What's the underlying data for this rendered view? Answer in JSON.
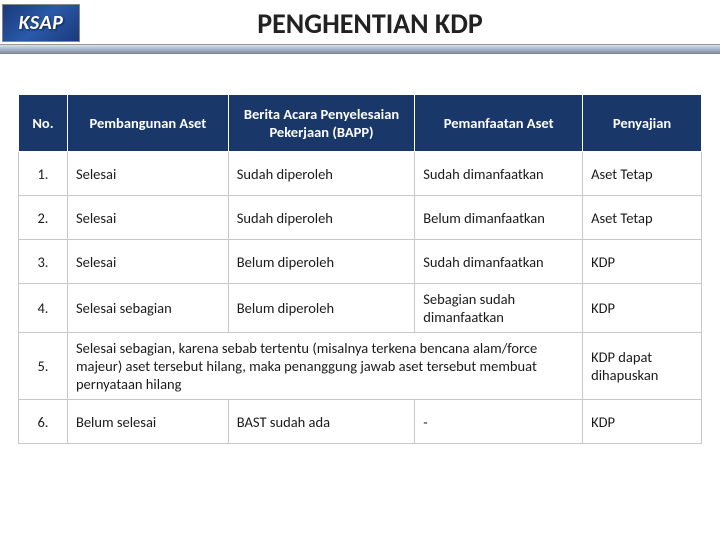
{
  "header": {
    "logo_text": "KSAP",
    "title": "PENGHENTIAN KDP"
  },
  "table": {
    "columns": [
      {
        "label": "No."
      },
      {
        "label": "Pembangunan Aset"
      },
      {
        "label": "Berita Acara Penyelesaian Pekerjaan (BAPP)"
      },
      {
        "label": "Pemanfaatan Aset"
      },
      {
        "label": "Penyajian"
      }
    ],
    "rows": [
      {
        "no": "1.",
        "pembangunan": "Selesai",
        "bapp": "Sudah diperoleh",
        "pemanfaatan": "Sudah dimanfaatkan",
        "penyajian": "Aset Tetap",
        "merged": false
      },
      {
        "no": "2.",
        "pembangunan": "Selesai",
        "bapp": "Sudah diperoleh",
        "pemanfaatan": "Belum dimanfaatkan",
        "penyajian": "Aset Tetap",
        "merged": false
      },
      {
        "no": "3.",
        "pembangunan": "Selesai",
        "bapp": "Belum diperoleh",
        "pemanfaatan": "Sudah dimanfaatkan",
        "penyajian": "KDP",
        "merged": false
      },
      {
        "no": "4.",
        "pembangunan": "Selesai sebagian",
        "bapp": "Belum diperoleh",
        "pemanfaatan": "Sebagian sudah dimanfaatkan",
        "penyajian": "KDP",
        "merged": false
      },
      {
        "no": "5.",
        "merged": true,
        "merged_text": "Selesai sebagian, karena sebab tertentu (misalnya terkena bencana alam/force majeur) aset tersebut hilang, maka penanggung jawab aset tersebut membuat pernyataan hilang",
        "penyajian": "KDP dapat dihapuskan"
      },
      {
        "no": "6.",
        "pembangunan": "Belum selesai",
        "bapp": "BAST sudah ada",
        "pemanfaatan": "-",
        "penyajian": "KDP",
        "merged": false
      }
    ]
  },
  "style": {
    "header_bg": "#193768",
    "header_fg": "#ffffff",
    "border_color": "#c8c8c8",
    "body_bg": "#ffffff",
    "font_size": 14.5,
    "title_fontsize": 28
  }
}
